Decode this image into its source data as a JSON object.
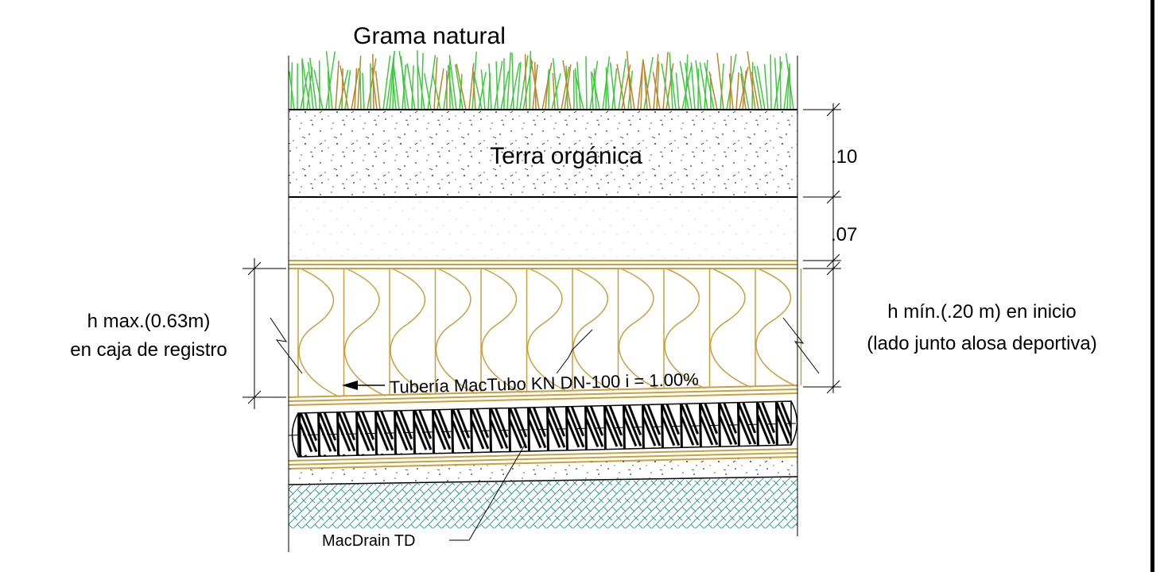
{
  "layers": {
    "grass": "Grama natural",
    "topsoil": "Terra orgánica"
  },
  "dimensions": [
    ".10",
    ".07"
  ],
  "h_max": [
    "h max.(0.63m)",
    "en caja de registro"
  ],
  "h_min": [
    "h mín.(.20 m) en inicio",
    "(lado junto alosa deportiva)"
  ],
  "pipe": "Tubería MacTubo KN DN-100 i = 1.00%",
  "drain": "MacDrain TD"
}
